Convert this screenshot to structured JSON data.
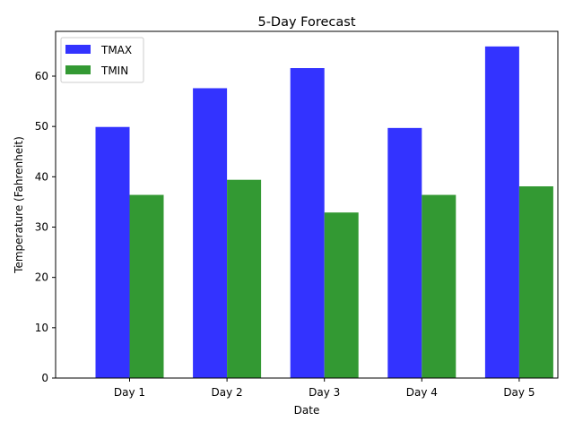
{
  "chart_data": {
    "type": "bar",
    "title": "5-Day Forecast",
    "xlabel": "Date",
    "ylabel": "Temperature (Fahrenheit)",
    "categories": [
      "Day 1",
      "Day 2",
      "Day 3",
      "Day 4",
      "Day 5"
    ],
    "series": [
      {
        "name": "TMAX",
        "color": "#3333ff",
        "values": [
          49.9,
          57.6,
          61.6,
          49.7,
          65.9
        ]
      },
      {
        "name": "TMIN",
        "color": "#339933",
        "values": [
          36.4,
          39.4,
          32.9,
          36.4,
          38.1
        ]
      }
    ],
    "ylim": [
      0,
      68.9
    ],
    "yticks": [
      0,
      10,
      20,
      30,
      40,
      50,
      60
    ],
    "legend": {
      "position": "upper-left"
    },
    "grid": false
  }
}
